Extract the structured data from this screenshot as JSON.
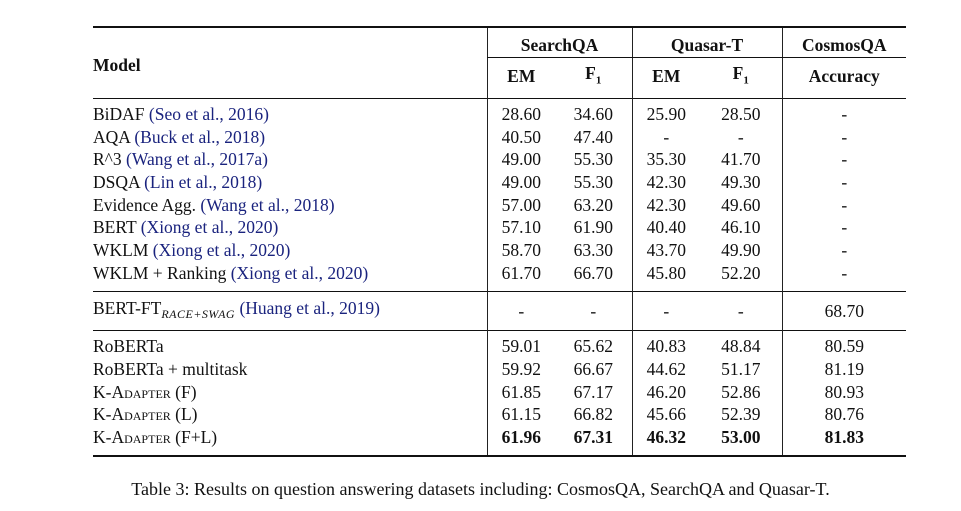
{
  "header": {
    "model": "Model",
    "groups": [
      "SearchQA",
      "Quasar-T",
      "CosmosQA"
    ],
    "sub": [
      "EM",
      "F",
      "1",
      "EM",
      "F",
      "1",
      "Accuracy"
    ]
  },
  "section1": [
    {
      "name": "BiDAF ",
      "cite": "(Seo et al., 2016)",
      "vals": [
        "28.60",
        "34.60",
        "25.90",
        "28.50",
        "-"
      ]
    },
    {
      "name": "AQA ",
      "cite": "(Buck et al., 2018)",
      "vals": [
        "40.50",
        "47.40",
        "-",
        "-",
        "-"
      ]
    },
    {
      "name": "R^3 ",
      "cite": "(Wang et al., 2017a)",
      "vals": [
        "49.00",
        "55.30",
        "35.30",
        "41.70",
        "-"
      ]
    },
    {
      "name": "DSQA ",
      "cite": "(Lin et al., 2018)",
      "vals": [
        "49.00",
        "55.30",
        "42.30",
        "49.30",
        "-"
      ]
    },
    {
      "name": "Evidence Agg. ",
      "cite": "(Wang et al., 2018)",
      "vals": [
        "57.00",
        "63.20",
        "42.30",
        "49.60",
        "-"
      ]
    },
    {
      "name": "BERT ",
      "cite": "(Xiong et al., 2020)",
      "vals": [
        "57.10",
        "61.90",
        "40.40",
        "46.10",
        "-"
      ]
    },
    {
      "name": "WKLM ",
      "cite": "(Xiong et al., 2020)",
      "vals": [
        "58.70",
        "63.30",
        "43.70",
        "49.90",
        "-"
      ]
    },
    {
      "name": "WKLM + Ranking ",
      "cite": "(Xiong et al., 2020)",
      "vals": [
        "61.70",
        "66.70",
        "45.80",
        "52.20",
        "-"
      ]
    }
  ],
  "section2": {
    "name": "BERT-FT",
    "sub": "RACE+SWAG",
    "cite": " (Huang et al., 2019)",
    "vals": [
      "-",
      "-",
      "-",
      "-",
      "68.70"
    ]
  },
  "section3": [
    {
      "name": "RoBERTa",
      "vals": [
        "59.01",
        "65.62",
        "40.83",
        "48.84",
        "80.59"
      ]
    },
    {
      "name": "RoBERTa + multitask",
      "vals": [
        "59.92",
        "66.67",
        "44.62",
        "51.17",
        "81.19"
      ]
    },
    {
      "name": "K-Adapter (F)",
      "vals": [
        "61.85",
        "67.17",
        "46.20",
        "52.86",
        "80.93"
      ]
    },
    {
      "name": "K-Adapter (L)",
      "vals": [
        "61.15",
        "66.82",
        "45.66",
        "52.39",
        "80.76"
      ]
    },
    {
      "name": "K-Adapter (F+L)",
      "vals": [
        "61.96",
        "67.31",
        "46.32",
        "53.00",
        "81.83"
      ],
      "bold": true
    }
  ],
  "caption": "Table 3: Results on question answering datasets including: CosmosQA, SearchQA and Quasar-T."
}
